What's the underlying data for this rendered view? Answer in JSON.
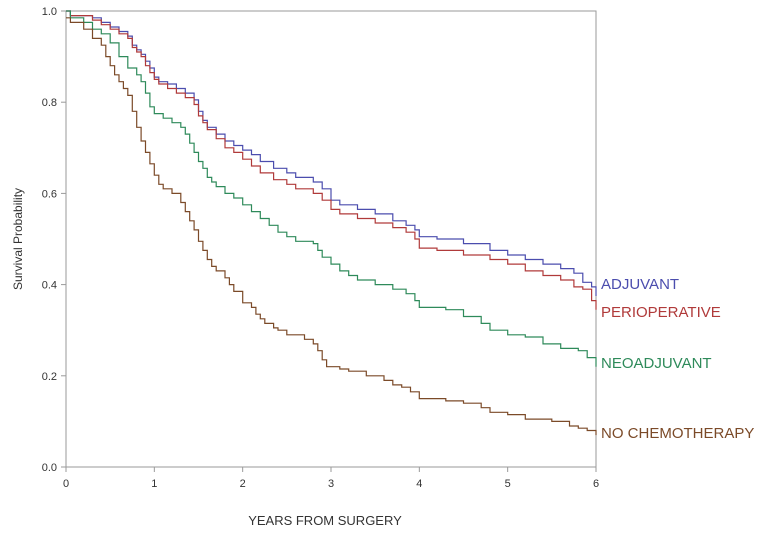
{
  "chart_data": {
    "type": "line",
    "title": "",
    "xlabel": "YEARS FROM SURGERY",
    "ylabel": "Survival Probability",
    "xlim": [
      0,
      6
    ],
    "ylim": [
      0,
      1
    ],
    "x_ticks": [
      "0",
      "1",
      "2",
      "3",
      "4",
      "5",
      "6"
    ],
    "y_ticks": [
      "0.0",
      "0.2",
      "0.4",
      "0.6",
      "0.8",
      "1.0"
    ],
    "grid": false,
    "legend": "inline labels at right end of each curve",
    "series": [
      {
        "name": "ADJUVANT",
        "color": "#4b4dae",
        "points": [
          [
            0,
            1.0
          ],
          [
            0.05,
            0.99
          ],
          [
            0.3,
            0.985
          ],
          [
            0.4,
            0.975
          ],
          [
            0.5,
            0.965
          ],
          [
            0.6,
            0.955
          ],
          [
            0.7,
            0.945
          ],
          [
            0.75,
            0.925
          ],
          [
            0.8,
            0.915
          ],
          [
            0.85,
            0.905
          ],
          [
            0.9,
            0.89
          ],
          [
            0.95,
            0.875
          ],
          [
            1.0,
            0.855
          ],
          [
            1.05,
            0.845
          ],
          [
            1.15,
            0.84
          ],
          [
            1.25,
            0.83
          ],
          [
            1.35,
            0.82
          ],
          [
            1.45,
            0.805
          ],
          [
            1.5,
            0.78
          ],
          [
            1.55,
            0.76
          ],
          [
            1.6,
            0.745
          ],
          [
            1.7,
            0.73
          ],
          [
            1.8,
            0.715
          ],
          [
            1.9,
            0.705
          ],
          [
            2.0,
            0.695
          ],
          [
            2.1,
            0.685
          ],
          [
            2.2,
            0.67
          ],
          [
            2.35,
            0.655
          ],
          [
            2.5,
            0.645
          ],
          [
            2.6,
            0.635
          ],
          [
            2.8,
            0.625
          ],
          [
            2.9,
            0.61
          ],
          [
            3.0,
            0.585
          ],
          [
            3.1,
            0.575
          ],
          [
            3.3,
            0.565
          ],
          [
            3.5,
            0.555
          ],
          [
            3.7,
            0.54
          ],
          [
            3.85,
            0.53
          ],
          [
            3.95,
            0.52
          ],
          [
            4.0,
            0.505
          ],
          [
            4.2,
            0.5
          ],
          [
            4.5,
            0.49
          ],
          [
            4.8,
            0.475
          ],
          [
            5.0,
            0.465
          ],
          [
            5.2,
            0.455
          ],
          [
            5.4,
            0.445
          ],
          [
            5.6,
            0.435
          ],
          [
            5.75,
            0.425
          ],
          [
            5.85,
            0.405
          ],
          [
            5.95,
            0.395
          ],
          [
            6.0,
            0.375
          ]
        ]
      },
      {
        "name": "PERIOPERATIVE",
        "color": "#b03a3a",
        "points": [
          [
            0,
            1.0
          ],
          [
            0.05,
            0.99
          ],
          [
            0.3,
            0.98
          ],
          [
            0.4,
            0.97
          ],
          [
            0.5,
            0.96
          ],
          [
            0.6,
            0.95
          ],
          [
            0.7,
            0.94
          ],
          [
            0.75,
            0.92
          ],
          [
            0.8,
            0.91
          ],
          [
            0.85,
            0.9
          ],
          [
            0.9,
            0.88
          ],
          [
            0.95,
            0.865
          ],
          [
            1.0,
            0.85
          ],
          [
            1.05,
            0.84
          ],
          [
            1.15,
            0.83
          ],
          [
            1.25,
            0.82
          ],
          [
            1.35,
            0.81
          ],
          [
            1.45,
            0.795
          ],
          [
            1.5,
            0.77
          ],
          [
            1.55,
            0.755
          ],
          [
            1.6,
            0.74
          ],
          [
            1.7,
            0.72
          ],
          [
            1.8,
            0.7
          ],
          [
            1.9,
            0.69
          ],
          [
            2.0,
            0.675
          ],
          [
            2.1,
            0.66
          ],
          [
            2.2,
            0.645
          ],
          [
            2.35,
            0.63
          ],
          [
            2.5,
            0.62
          ],
          [
            2.6,
            0.61
          ],
          [
            2.8,
            0.6
          ],
          [
            2.9,
            0.585
          ],
          [
            3.0,
            0.565
          ],
          [
            3.1,
            0.555
          ],
          [
            3.3,
            0.545
          ],
          [
            3.5,
            0.535
          ],
          [
            3.7,
            0.525
          ],
          [
            3.85,
            0.515
          ],
          [
            3.95,
            0.5
          ],
          [
            4.0,
            0.48
          ],
          [
            4.2,
            0.475
          ],
          [
            4.5,
            0.465
          ],
          [
            4.8,
            0.455
          ],
          [
            5.0,
            0.445
          ],
          [
            5.2,
            0.43
          ],
          [
            5.4,
            0.42
          ],
          [
            5.6,
            0.41
          ],
          [
            5.75,
            0.395
          ],
          [
            5.85,
            0.39
          ],
          [
            5.95,
            0.365
          ],
          [
            6.0,
            0.345
          ]
        ]
      },
      {
        "name": "NEOADJUVANT",
        "color": "#2e8a5a",
        "points": [
          [
            0,
            1.0
          ],
          [
            0.05,
            0.985
          ],
          [
            0.2,
            0.975
          ],
          [
            0.3,
            0.96
          ],
          [
            0.4,
            0.95
          ],
          [
            0.5,
            0.93
          ],
          [
            0.6,
            0.9
          ],
          [
            0.7,
            0.875
          ],
          [
            0.8,
            0.86
          ],
          [
            0.85,
            0.845
          ],
          [
            0.9,
            0.82
          ],
          [
            0.95,
            0.79
          ],
          [
            1.0,
            0.775
          ],
          [
            1.1,
            0.765
          ],
          [
            1.2,
            0.755
          ],
          [
            1.3,
            0.745
          ],
          [
            1.35,
            0.73
          ],
          [
            1.4,
            0.71
          ],
          [
            1.45,
            0.69
          ],
          [
            1.5,
            0.67
          ],
          [
            1.55,
            0.655
          ],
          [
            1.6,
            0.635
          ],
          [
            1.65,
            0.625
          ],
          [
            1.7,
            0.615
          ],
          [
            1.8,
            0.6
          ],
          [
            1.9,
            0.59
          ],
          [
            2.0,
            0.575
          ],
          [
            2.1,
            0.56
          ],
          [
            2.2,
            0.545
          ],
          [
            2.3,
            0.53
          ],
          [
            2.4,
            0.515
          ],
          [
            2.5,
            0.505
          ],
          [
            2.6,
            0.495
          ],
          [
            2.8,
            0.49
          ],
          [
            2.85,
            0.475
          ],
          [
            2.9,
            0.46
          ],
          [
            3.0,
            0.445
          ],
          [
            3.1,
            0.43
          ],
          [
            3.2,
            0.42
          ],
          [
            3.3,
            0.41
          ],
          [
            3.5,
            0.4
          ],
          [
            3.7,
            0.39
          ],
          [
            3.85,
            0.38
          ],
          [
            3.95,
            0.365
          ],
          [
            4.0,
            0.35
          ],
          [
            4.3,
            0.345
          ],
          [
            4.5,
            0.33
          ],
          [
            4.7,
            0.315
          ],
          [
            4.8,
            0.3
          ],
          [
            5.0,
            0.29
          ],
          [
            5.2,
            0.285
          ],
          [
            5.4,
            0.27
          ],
          [
            5.6,
            0.26
          ],
          [
            5.8,
            0.255
          ],
          [
            5.9,
            0.24
          ],
          [
            6.0,
            0.22
          ]
        ]
      },
      {
        "name": "NO CHEMOTHERAPY",
        "color": "#7b4a28",
        "points": [
          [
            0,
            0.985
          ],
          [
            0.05,
            0.975
          ],
          [
            0.2,
            0.96
          ],
          [
            0.3,
            0.94
          ],
          [
            0.4,
            0.925
          ],
          [
            0.45,
            0.9
          ],
          [
            0.5,
            0.88
          ],
          [
            0.55,
            0.86
          ],
          [
            0.6,
            0.845
          ],
          [
            0.65,
            0.83
          ],
          [
            0.7,
            0.815
          ],
          [
            0.75,
            0.78
          ],
          [
            0.8,
            0.745
          ],
          [
            0.85,
            0.715
          ],
          [
            0.9,
            0.69
          ],
          [
            0.95,
            0.665
          ],
          [
            1.0,
            0.64
          ],
          [
            1.05,
            0.62
          ],
          [
            1.1,
            0.61
          ],
          [
            1.2,
            0.6
          ],
          [
            1.3,
            0.58
          ],
          [
            1.35,
            0.56
          ],
          [
            1.4,
            0.54
          ],
          [
            1.45,
            0.52
          ],
          [
            1.5,
            0.495
          ],
          [
            1.55,
            0.475
          ],
          [
            1.6,
            0.455
          ],
          [
            1.65,
            0.44
          ],
          [
            1.7,
            0.43
          ],
          [
            1.8,
            0.415
          ],
          [
            1.85,
            0.4
          ],
          [
            1.9,
            0.385
          ],
          [
            2.0,
            0.36
          ],
          [
            2.1,
            0.35
          ],
          [
            2.15,
            0.335
          ],
          [
            2.2,
            0.325
          ],
          [
            2.25,
            0.315
          ],
          [
            2.35,
            0.305
          ],
          [
            2.4,
            0.3
          ],
          [
            2.5,
            0.29
          ],
          [
            2.7,
            0.28
          ],
          [
            2.8,
            0.27
          ],
          [
            2.85,
            0.255
          ],
          [
            2.9,
            0.235
          ],
          [
            2.95,
            0.22
          ],
          [
            3.1,
            0.215
          ],
          [
            3.2,
            0.21
          ],
          [
            3.4,
            0.2
          ],
          [
            3.6,
            0.19
          ],
          [
            3.7,
            0.18
          ],
          [
            3.8,
            0.175
          ],
          [
            3.9,
            0.165
          ],
          [
            4.0,
            0.15
          ],
          [
            4.3,
            0.145
          ],
          [
            4.5,
            0.14
          ],
          [
            4.7,
            0.13
          ],
          [
            4.8,
            0.12
          ],
          [
            5.0,
            0.115
          ],
          [
            5.2,
            0.105
          ],
          [
            5.5,
            0.1
          ],
          [
            5.7,
            0.09
          ],
          [
            5.8,
            0.085
          ],
          [
            5.9,
            0.08
          ],
          [
            6.0,
            0.07
          ]
        ]
      }
    ]
  }
}
